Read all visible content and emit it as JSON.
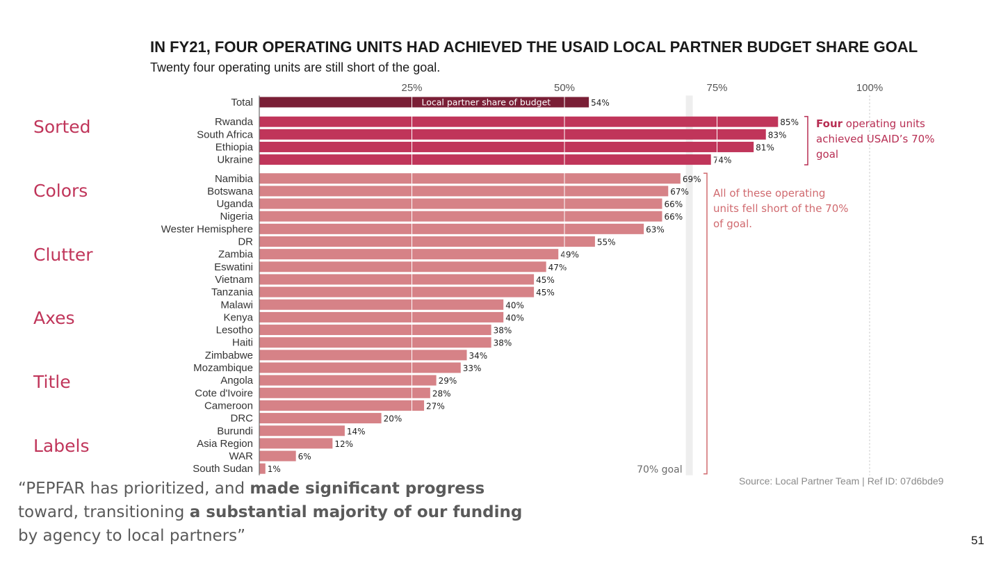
{
  "title": "IN FY21, FOUR OPERATING UNITS HAD ACHIEVED THE USAID LOCAL PARTNER BUDGET SHARE GOAL",
  "subtitle": "Twenty four operating units are still short of the goal.",
  "side_labels": [
    "Sorted",
    "Colors",
    "Clutter",
    "Axes",
    "Title",
    "Labels"
  ],
  "annotations": {
    "top_bold": "Four",
    "top_rest": " operating units achieved USAID’s 70% goal",
    "bottom": "All of these operating units fell short of the 70%  of goal."
  },
  "source": "Source: Local Partner Team | Ref ID: 07d6bde9",
  "quote": {
    "part1": "“PEPFAR has prioritized, and ",
    "bold1": "made significant progress",
    "part2": " toward, transitioning ",
    "bold2": "a substantial majority of our funding",
    "part3": " by agency to local partners”"
  },
  "page_number": "51",
  "colors": {
    "total": "#7a1f36",
    "achieved": "#c0355a",
    "short": "#d68287",
    "goal_band": "#eeeeee",
    "achieved_annotation": "#b72d52",
    "short_annotation": "#d06a6f"
  },
  "chart_data": {
    "type": "bar",
    "orientation": "horizontal",
    "title": "IN FY21, FOUR OPERATING UNITS HAD ACHIEVED THE USAID LOCAL PARTNER BUDGET SHARE GOAL",
    "subtitle": "Twenty four operating units are still short of the goal.",
    "xlim": [
      0,
      100
    ],
    "x_ticks": [
      "25%",
      "50%",
      "75%",
      "100%"
    ],
    "x_tick_values": [
      25,
      50,
      75,
      100
    ],
    "grid": true,
    "goal_value": 70,
    "goal_label": "70% goal",
    "series_label": "Local partner share of budget",
    "groups": [
      {
        "name": "total",
        "items": [
          {
            "label": "Total",
            "value": 54
          }
        ]
      },
      {
        "name": "achieved",
        "items": [
          {
            "label": "Rwanda",
            "value": 85
          },
          {
            "label": "South Africa",
            "value": 83
          },
          {
            "label": "Ethiopia",
            "value": 81
          },
          {
            "label": "Ukraine",
            "value": 74
          }
        ]
      },
      {
        "name": "short",
        "items": [
          {
            "label": "Namibia",
            "value": 69
          },
          {
            "label": "Botswana",
            "value": 67
          },
          {
            "label": "Uganda",
            "value": 66
          },
          {
            "label": "Nigeria",
            "value": 66
          },
          {
            "label": "Wester Hemisphere",
            "value": 63
          },
          {
            "label": "DR",
            "value": 55
          },
          {
            "label": "Zambia",
            "value": 49
          },
          {
            "label": "Eswatini",
            "value": 47
          },
          {
            "label": "Vietnam",
            "value": 45
          },
          {
            "label": "Tanzania",
            "value": 45
          },
          {
            "label": "Malawi",
            "value": 40
          },
          {
            "label": "Kenya",
            "value": 40
          },
          {
            "label": "Lesotho",
            "value": 38
          },
          {
            "label": "Haiti",
            "value": 38
          },
          {
            "label": "Zimbabwe",
            "value": 34
          },
          {
            "label": "Mozambique",
            "value": 33
          },
          {
            "label": "Angola",
            "value": 29
          },
          {
            "label": "Cote d'Ivoire",
            "value": 28
          },
          {
            "label": "Cameroon",
            "value": 27
          },
          {
            "label": "DRC",
            "value": 20
          },
          {
            "label": "Burundi",
            "value": 14
          },
          {
            "label": "Asia Region",
            "value": 12
          },
          {
            "label": "WAR",
            "value": 6
          },
          {
            "label": "South Sudan",
            "value": 1
          }
        ]
      }
    ]
  }
}
